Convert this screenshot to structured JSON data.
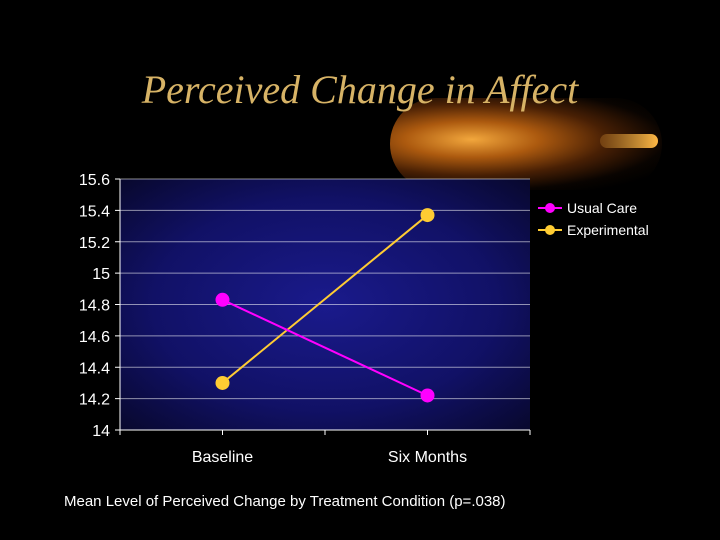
{
  "slide": {
    "title": "Perceived Change in Affect",
    "caption": "Mean Level of Perceived Change by Treatment Condition (p=.038)"
  },
  "colors": {
    "title": "#d7b366",
    "usual_care": "#ff00ff",
    "experimental": "#ffcc33",
    "plot_bg_center": "#1a1a8c",
    "plot_bg_edge": "#08082e"
  },
  "chart_data": {
    "type": "line",
    "title": "",
    "xlabel": "",
    "ylabel": "",
    "categories": [
      "Baseline",
      "Six Months"
    ],
    "yticks": [
      "15.6",
      "15.4",
      "15.2",
      "15",
      "14.8",
      "14.6",
      "14.4",
      "14.2",
      "14"
    ],
    "ylim": [
      14,
      15.6
    ],
    "grid": true,
    "legend_position": "right",
    "series": [
      {
        "name": "Usual Care",
        "values": [
          14.83,
          14.22
        ]
      },
      {
        "name": "Experimental",
        "values": [
          14.3,
          15.37
        ]
      }
    ]
  }
}
